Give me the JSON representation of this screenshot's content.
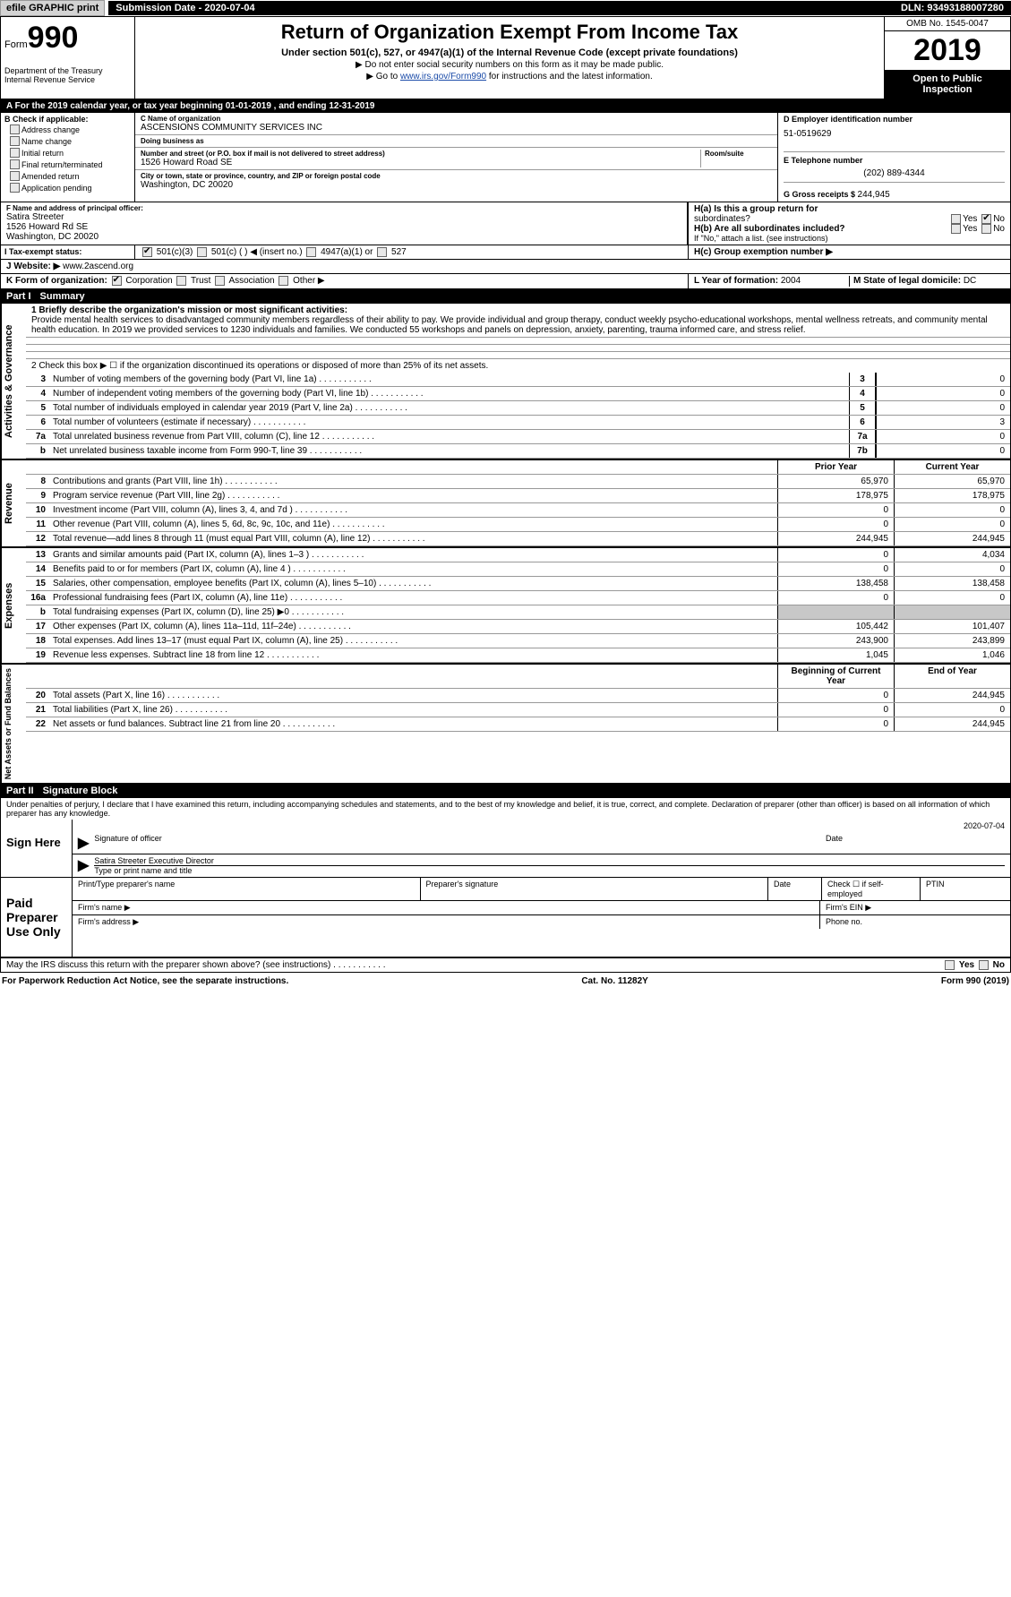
{
  "topbar": {
    "efile_btn": "efile GRAPHIC print",
    "sub_date_label": "Submission Date - ",
    "sub_date": "2020-07-04",
    "dln_label": "DLN: ",
    "dln": "93493188007280"
  },
  "header": {
    "form_label": "Form",
    "form_no": "990",
    "dept": "Department of the Treasury\nInternal Revenue Service",
    "title": "Return of Organization Exempt From Income Tax",
    "subtitle": "Under section 501(c), 527, or 4947(a)(1) of the Internal Revenue Code (except private foundations)",
    "instr1": "▶ Do not enter social security numbers on this form as it may be made public.",
    "instr2_pre": "▶ Go to ",
    "instr2_link": "www.irs.gov/Form990",
    "instr2_post": " for instructions and the latest information.",
    "omb": "OMB No. 1545-0047",
    "year": "2019",
    "open": "Open to Public Inspection"
  },
  "period": {
    "line": "A  For the 2019 calendar year, or tax year beginning 01-01-2019      , and ending 12-31-2019"
  },
  "B": {
    "label": "B Check if applicable:",
    "items": [
      "Address change",
      "Name change",
      "Initial return",
      "Final return/terminated",
      "Amended return",
      "Application pending"
    ]
  },
  "C": {
    "name_lab": "C Name of organization",
    "name": "ASCENSIONS COMMUNITY SERVICES INC",
    "dba_lab": "Doing business as",
    "dba": "",
    "street_lab": "Number and street (or P.O. box if mail is not delivered to street address)",
    "street": "1526 Howard Road SE",
    "room_lab": "Room/suite",
    "city_lab": "City or town, state or province, country, and ZIP or foreign postal code",
    "city": "Washington, DC  20020"
  },
  "D": {
    "lab": "D Employer identification number",
    "val": "51-0519629"
  },
  "E": {
    "lab": "E Telephone number",
    "val": "(202) 889-4344"
  },
  "G": {
    "lab": "G Gross receipts $ ",
    "val": "244,945"
  },
  "F": {
    "lab": "F  Name and address of principal officer:",
    "name": "Satira Streeter",
    "street": "1526 Howard Rd SE",
    "city": "Washington, DC  20020"
  },
  "H": {
    "a_lab": "H(a)  Is this a group return for",
    "a_sub": "subordinates?",
    "b_lab": "H(b)  Are all subordinates included?",
    "b_note": "If \"No,\" attach a list. (see instructions)",
    "c_lab": "H(c)  Group exemption number ▶",
    "yes": "Yes",
    "no": "No"
  },
  "I": {
    "lab": "I  Tax-exempt status:",
    "opts": [
      "501(c)(3)",
      "501(c) (  ) ◀ (insert no.)",
      "4947(a)(1) or",
      "527"
    ]
  },
  "J": {
    "lab": "J  Website: ▶",
    "val": "www.2ascend.org"
  },
  "K": {
    "lab": "K Form of organization:",
    "opts": [
      "Corporation",
      "Trust",
      "Association",
      "Other ▶"
    ]
  },
  "L": {
    "lab": "L Year of formation: ",
    "val": "2004"
  },
  "M": {
    "lab": "M State of legal domicile: ",
    "val": "DC"
  },
  "part1": {
    "hdr_num": "Part I",
    "hdr_title": "Summary",
    "l1_lab": "1  Briefly describe the organization's mission or most significant activities:",
    "l1_text": "Provide mental health services to disadvantaged community members regardless of their ability to pay. We provide individual and group therapy, conduct weekly psycho-educational workshops, mental wellness retreats, and community mental health education. In 2019 we provided services to 1230 individuals and families. We conducted 55 workshops and panels on depression, anxiety, parenting, trauma informed care, and stress relief.",
    "l2": "2   Check this box ▶ ☐  if the organization discontinued its operations or disposed of more than 25% of its net assets.",
    "sideA": "Activities & Governance",
    "sideR": "Revenue",
    "sideE": "Expenses",
    "sideN": "Net Assets or Fund Balances",
    "lines_gov": [
      {
        "n": "3",
        "t": "Number of voting members of the governing body (Part VI, line 1a)",
        "box": "3",
        "v": "0"
      },
      {
        "n": "4",
        "t": "Number of independent voting members of the governing body (Part VI, line 1b)",
        "box": "4",
        "v": "0"
      },
      {
        "n": "5",
        "t": "Total number of individuals employed in calendar year 2019 (Part V, line 2a)",
        "box": "5",
        "v": "0"
      },
      {
        "n": "6",
        "t": "Total number of volunteers (estimate if necessary)",
        "box": "6",
        "v": "3"
      },
      {
        "n": "7a",
        "t": "Total unrelated business revenue from Part VIII, column (C), line 12",
        "box": "7a",
        "v": "0"
      },
      {
        "n": "b",
        "t": "Net unrelated business taxable income from Form 990-T, line 39",
        "box": "7b",
        "v": "0"
      }
    ],
    "col_prior": "Prior Year",
    "col_curr": "Current Year",
    "lines_rev": [
      {
        "n": "8",
        "t": "Contributions and grants (Part VIII, line 1h)",
        "p": "65,970",
        "c": "65,970"
      },
      {
        "n": "9",
        "t": "Program service revenue (Part VIII, line 2g)",
        "p": "178,975",
        "c": "178,975"
      },
      {
        "n": "10",
        "t": "Investment income (Part VIII, column (A), lines 3, 4, and 7d )",
        "p": "0",
        "c": "0"
      },
      {
        "n": "11",
        "t": "Other revenue (Part VIII, column (A), lines 5, 6d, 8c, 9c, 10c, and 11e)",
        "p": "0",
        "c": "0"
      },
      {
        "n": "12",
        "t": "Total revenue—add lines 8 through 11 (must equal Part VIII, column (A), line 12)",
        "p": "244,945",
        "c": "244,945"
      }
    ],
    "lines_exp": [
      {
        "n": "13",
        "t": "Grants and similar amounts paid (Part IX, column (A), lines 1–3 )",
        "p": "0",
        "c": "4,034"
      },
      {
        "n": "14",
        "t": "Benefits paid to or for members (Part IX, column (A), line 4 )",
        "p": "0",
        "c": "0"
      },
      {
        "n": "15",
        "t": "Salaries, other compensation, employee benefits (Part IX, column (A), lines 5–10)",
        "p": "138,458",
        "c": "138,458"
      },
      {
        "n": "16a",
        "t": "Professional fundraising fees (Part IX, column (A), line 11e)",
        "p": "0",
        "c": "0"
      },
      {
        "n": "b",
        "t": "Total fundraising expenses (Part IX, column (D), line 25) ▶0",
        "p": "",
        "c": "",
        "shade": true
      },
      {
        "n": "17",
        "t": "Other expenses (Part IX, column (A), lines 11a–11d, 11f–24e)",
        "p": "105,442",
        "c": "101,407"
      },
      {
        "n": "18",
        "t": "Total expenses. Add lines 13–17 (must equal Part IX, column (A), line 25)",
        "p": "243,900",
        "c": "243,899"
      },
      {
        "n": "19",
        "t": "Revenue less expenses. Subtract line 18 from line 12",
        "p": "1,045",
        "c": "1,046"
      }
    ],
    "col_beg": "Beginning of Current Year",
    "col_end": "End of Year",
    "lines_net": [
      {
        "n": "20",
        "t": "Total assets (Part X, line 16)",
        "p": "0",
        "c": "244,945"
      },
      {
        "n": "21",
        "t": "Total liabilities (Part X, line 26)",
        "p": "0",
        "c": "0"
      },
      {
        "n": "22",
        "t": "Net assets or fund balances. Subtract line 21 from line 20",
        "p": "0",
        "c": "244,945"
      }
    ]
  },
  "part2": {
    "hdr_num": "Part II",
    "hdr_title": "Signature Block",
    "decl": "Under penalties of perjury, I declare that I have examined this return, including accompanying schedules and statements, and to the best of my knowledge and belief, it is true, correct, and complete. Declaration of preparer (other than officer) is based on all information of which preparer has any knowledge.",
    "sign_here": "Sign Here",
    "sig_officer_lab": "Signature of officer",
    "sig_date_lab": "Date",
    "sig_date": "2020-07-04",
    "sig_name": "Satira Streeter  Executive Director",
    "sig_name_lab": "Type or print name and title",
    "paid": "Paid Preparer Use Only",
    "prep_name_lab": "Print/Type preparer's name",
    "prep_sig_lab": "Preparer's signature",
    "prep_date_lab": "Date",
    "prep_chk": "Check ☐ if self-employed",
    "ptin": "PTIN",
    "firm_name": "Firm's name  ▶",
    "firm_ein": "Firm's EIN ▶",
    "firm_addr": "Firm's address ▶",
    "phone": "Phone no.",
    "discuss": "May the IRS discuss this return with the preparer shown above? (see instructions)"
  },
  "footer": {
    "left": "For Paperwork Reduction Act Notice, see the separate instructions.",
    "mid": "Cat. No. 11282Y",
    "right": "Form 990 (2019)"
  },
  "colors": {
    "black": "#000000",
    "gray_btn": "#d3d3d3",
    "gray_shade": "#c8c8c8",
    "link": "#1a4ba8"
  }
}
